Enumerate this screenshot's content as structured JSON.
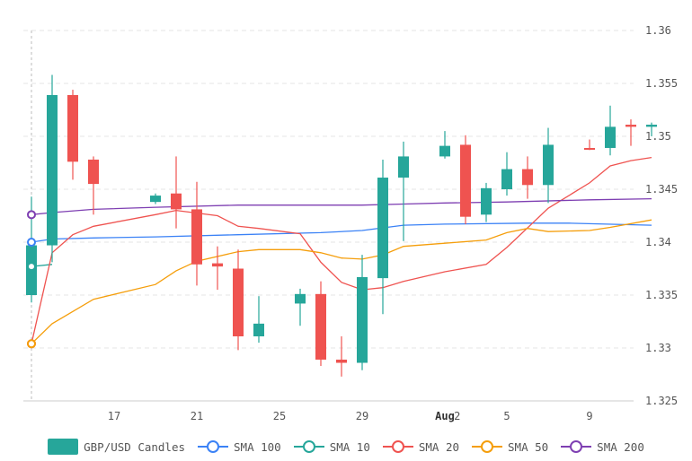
{
  "chart_data": {
    "type": "candlestick",
    "ylim": [
      1.325,
      1.36
    ],
    "y_ticks": [
      "1.325",
      "1.33",
      "1.335",
      "1.34",
      "1.345",
      "1.35",
      "1.355",
      "1.36"
    ],
    "x_ticks": [
      {
        "day": 17,
        "label": "17"
      },
      {
        "day": 21,
        "label": "21"
      },
      {
        "day": 25,
        "label": "25"
      },
      {
        "day": 29,
        "label": "29"
      },
      {
        "day": 33,
        "label": "Aug",
        "bold": true
      },
      {
        "day": 33.6,
        "label": "2"
      },
      {
        "day": 36,
        "label": "5"
      },
      {
        "day": 40,
        "label": "9"
      }
    ],
    "x_domain": [
      13.0,
      43.5
    ],
    "grid": true,
    "legend_position": "bottom",
    "candle_up_color": "#26a69a",
    "candle_down_color": "#ef5350",
    "candles": [
      {
        "date": "Jul 13",
        "day": 13,
        "open": 1.335,
        "high": 1.3443,
        "low": 1.3343,
        "close": 1.3397
      },
      {
        "date": "Jul 14",
        "day": 14,
        "open": 1.3397,
        "high": 1.3558,
        "low": 1.3381,
        "close": 1.3539
      },
      {
        "date": "Jul 15",
        "day": 15,
        "open": 1.3539,
        "high": 1.3544,
        "low": 1.3459,
        "close": 1.3476
      },
      {
        "date": "Jul 16",
        "day": 16,
        "open": 1.3478,
        "high": 1.3481,
        "low": 1.3426,
        "close": 1.3455
      },
      {
        "date": "Jul 19",
        "day": 19,
        "open": 1.3438,
        "high": 1.3446,
        "low": 1.3436,
        "close": 1.3444
      },
      {
        "date": "Jul 20",
        "day": 20,
        "open": 1.3446,
        "high": 1.3481,
        "low": 1.3413,
        "close": 1.3431
      },
      {
        "date": "Jul 21",
        "day": 21,
        "open": 1.3431,
        "high": 1.3457,
        "low": 1.3359,
        "close": 1.3379
      },
      {
        "date": "Jul 22",
        "day": 22,
        "open": 1.338,
        "high": 1.3396,
        "low": 1.3355,
        "close": 1.3377
      },
      {
        "date": "Jul 23",
        "day": 23,
        "open": 1.3375,
        "high": 1.3393,
        "low": 1.3298,
        "close": 1.3311
      },
      {
        "date": "Jul 24",
        "day": 24,
        "open": 1.3311,
        "high": 1.3349,
        "low": 1.3305,
        "close": 1.3323
      },
      {
        "date": "Jul 26",
        "day": 26,
        "open": 1.3342,
        "high": 1.3356,
        "low": 1.3321,
        "close": 1.3351
      },
      {
        "date": "Jul 27",
        "day": 27,
        "open": 1.3351,
        "high": 1.3363,
        "low": 1.3283,
        "close": 1.3289
      },
      {
        "date": "Jul 28",
        "day": 28,
        "open": 1.3289,
        "high": 1.3311,
        "low": 1.3273,
        "close": 1.3286
      },
      {
        "date": "Jul 29",
        "day": 29,
        "open": 1.3286,
        "high": 1.3388,
        "low": 1.3279,
        "close": 1.3367
      },
      {
        "date": "Jul 30",
        "day": 30,
        "open": 1.3366,
        "high": 1.3478,
        "low": 1.3332,
        "close": 1.3461
      },
      {
        "date": "Jul 31",
        "day": 31,
        "open": 1.3461,
        "high": 1.3495,
        "low": 1.3401,
        "close": 1.3481
      },
      {
        "date": "Aug 2",
        "day": 33,
        "open": 1.3481,
        "high": 1.3505,
        "low": 1.3479,
        "close": 1.3491
      },
      {
        "date": "Aug 3",
        "day": 34,
        "open": 1.3492,
        "high": 1.3501,
        "low": 1.3417,
        "close": 1.3424
      },
      {
        "date": "Aug 4",
        "day": 35,
        "open": 1.3426,
        "high": 1.3456,
        "low": 1.3419,
        "close": 1.3451
      },
      {
        "date": "Aug 5",
        "day": 36,
        "open": 1.345,
        "high": 1.3485,
        "low": 1.3444,
        "close": 1.3469
      },
      {
        "date": "Aug 6",
        "day": 37,
        "open": 1.3469,
        "high": 1.3481,
        "low": 1.3441,
        "close": 1.3454
      },
      {
        "date": "Aug 7",
        "day": 38,
        "open": 1.3454,
        "high": 1.3508,
        "low": 1.3437,
        "close": 1.3492
      },
      {
        "date": "Aug 9",
        "day": 40,
        "open": 1.3489,
        "high": 1.3497,
        "low": 1.3487,
        "close": 1.3488
      },
      {
        "date": "Aug 10",
        "day": 41,
        "open": 1.3489,
        "high": 1.3529,
        "low": 1.3482,
        "close": 1.3509
      },
      {
        "date": "Aug 11",
        "day": 42,
        "open": 1.3511,
        "high": 1.3516,
        "low": 1.3491,
        "close": 1.3509
      },
      {
        "date": "Aug 12",
        "day": 43,
        "open": 1.3509,
        "high": 1.3513,
        "low": 1.35,
        "close": 1.3511
      }
    ],
    "series": [
      {
        "name": "SMA 100",
        "color": "#3b82f6",
        "points": [
          [
            13,
            1.34
          ],
          [
            14,
            1.3403
          ],
          [
            16,
            1.3404
          ],
          [
            19,
            1.3405
          ],
          [
            23,
            1.3407
          ],
          [
            27,
            1.3409
          ],
          [
            29,
            1.3411
          ],
          [
            31,
            1.3416
          ],
          [
            33,
            1.3417
          ],
          [
            37,
            1.3418
          ],
          [
            39,
            1.3418
          ],
          [
            43,
            1.3416
          ]
        ]
      },
      {
        "name": "SMA 10",
        "color": "#26a69a",
        "points": [
          [
            13,
            1.3377
          ],
          [
            14,
            1.3379
          ]
        ]
      },
      {
        "name": "SMA 20",
        "color": "#ef5350",
        "points": [
          [
            13,
            1.3304
          ],
          [
            14,
            1.339
          ],
          [
            15,
            1.3407
          ],
          [
            16,
            1.3415
          ],
          [
            19,
            1.3426
          ],
          [
            20,
            1.343
          ],
          [
            22,
            1.3425
          ],
          [
            23,
            1.3415
          ],
          [
            24,
            1.3413
          ],
          [
            26,
            1.3408
          ],
          [
            27,
            1.3381
          ],
          [
            28,
            1.3362
          ],
          [
            29,
            1.3355
          ],
          [
            30,
            1.3357
          ],
          [
            31,
            1.3363
          ],
          [
            33,
            1.3372
          ],
          [
            35,
            1.3379
          ],
          [
            36,
            1.3395
          ],
          [
            38,
            1.3432
          ],
          [
            40,
            1.3456
          ],
          [
            41,
            1.3472
          ],
          [
            42,
            1.3477
          ],
          [
            43,
            1.348
          ]
        ]
      },
      {
        "name": "SMA 50",
        "color": "#f59e0b",
        "points": [
          [
            13,
            1.3304
          ],
          [
            14,
            1.3323
          ],
          [
            16,
            1.3346
          ],
          [
            19,
            1.336
          ],
          [
            20,
            1.3373
          ],
          [
            21,
            1.3382
          ],
          [
            23,
            1.3391
          ],
          [
            24,
            1.3393
          ],
          [
            26,
            1.3393
          ],
          [
            27,
            1.339
          ],
          [
            28,
            1.3385
          ],
          [
            29,
            1.3384
          ],
          [
            30,
            1.3388
          ],
          [
            31,
            1.3396
          ],
          [
            33,
            1.3399
          ],
          [
            35,
            1.3402
          ],
          [
            36,
            1.3409
          ],
          [
            37,
            1.3413
          ],
          [
            38,
            1.341
          ],
          [
            40,
            1.3411
          ],
          [
            41,
            1.3414
          ],
          [
            43,
            1.3421
          ]
        ]
      },
      {
        "name": "SMA 200",
        "color": "#7e3fb2",
        "points": [
          [
            13,
            1.3426
          ],
          [
            14,
            1.3428
          ],
          [
            16,
            1.3431
          ],
          [
            19,
            1.3433
          ],
          [
            23,
            1.3435
          ],
          [
            27,
            1.3435
          ],
          [
            29,
            1.3435
          ],
          [
            31,
            1.3436
          ],
          [
            33,
            1.3437
          ],
          [
            36,
            1.3438
          ],
          [
            40,
            1.344
          ],
          [
            43,
            1.3441
          ]
        ]
      }
    ],
    "legend": [
      {
        "label": "GBP/USD Candles",
        "kind": "candle"
      },
      {
        "label": "SMA 100",
        "kind": "line",
        "color": "#3b82f6"
      },
      {
        "label": "SMA 10",
        "kind": "line",
        "color": "#26a69a"
      },
      {
        "label": "SMA 20",
        "kind": "line",
        "color": "#ef5350"
      },
      {
        "label": "SMA 50",
        "kind": "line",
        "color": "#f59e0b"
      },
      {
        "label": "SMA 200",
        "kind": "line",
        "color": "#7e3fb2"
      }
    ]
  }
}
